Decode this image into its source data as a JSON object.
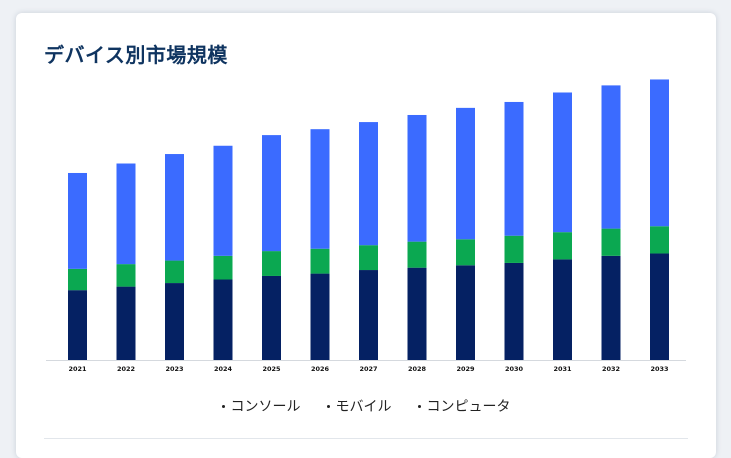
{
  "card": {
    "title": "デバイス別市場規模"
  },
  "chart_data": {
    "type": "bar",
    "stacked": true,
    "title": "デバイス別市場規模",
    "categories": [
      "2021",
      "2022",
      "2023",
      "2024",
      "2025",
      "2026",
      "2027",
      "2028",
      "2029",
      "2030",
      "2031",
      "2032",
      "2033"
    ],
    "series": [
      {
        "name": "コンソール",
        "color": "#052163",
        "values": [
          59,
          62,
          65,
          68,
          71,
          73,
          76,
          78,
          80,
          82,
          85,
          88,
          90
        ]
      },
      {
        "name": "モバイル",
        "color": "#0ba851",
        "values": [
          18,
          19,
          19,
          20,
          21,
          21,
          21,
          22,
          22,
          23,
          23,
          23,
          23
        ]
      },
      {
        "name": "コンピュータ",
        "color": "#3b6bff",
        "values": [
          81,
          85,
          90,
          93,
          98,
          101,
          104,
          107,
          111,
          113,
          118,
          121,
          124
        ]
      }
    ],
    "ylim": [
      0,
      245
    ],
    "grid": false,
    "legend_position": "bottom"
  }
}
